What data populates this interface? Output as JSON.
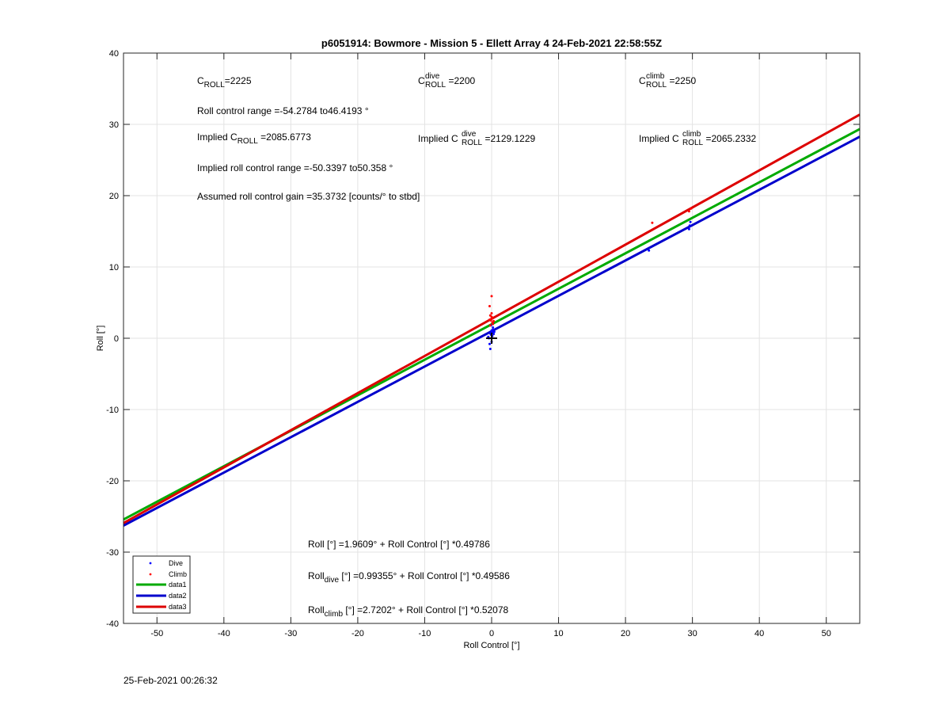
{
  "chart_data": {
    "type": "scatter",
    "title": "p6051914: Bowmore - Mission 5 - Ellett Array 4 24-Feb-2021 22:58:55Z",
    "xlabel": "Roll Control [°]",
    "ylabel": "Roll [°]",
    "xlim": [
      -55,
      55
    ],
    "ylim": [
      -40,
      40
    ],
    "xticks": [
      -50,
      -40,
      -30,
      -20,
      -10,
      0,
      10,
      20,
      30,
      40,
      50
    ],
    "yticks": [
      -40,
      -30,
      -20,
      -10,
      0,
      10,
      20,
      30,
      40
    ],
    "grid": true,
    "legend_position": "bottom-left",
    "series": [
      {
        "name": "Dive",
        "kind": "points",
        "color": "#0000ff",
        "x": [
          -0.5,
          -0.3,
          -0.2,
          -0.1,
          0.0,
          0.1,
          0.2,
          0.3,
          -0.4,
          0.0,
          0.2,
          0.4,
          -0.1,
          0.1,
          -0.2,
          0.0,
          23.5,
          29.5,
          29.6,
          29.7
        ],
        "y": [
          0.2,
          -0.8,
          -1.5,
          0.5,
          1.0,
          0.8,
          1.2,
          0.6,
          0.0,
          -0.5,
          1.5,
          0.9,
          1.8,
          0.3,
          0.7,
          1.1,
          12.3,
          15.3,
          15.8,
          16.3
        ]
      },
      {
        "name": "Climb",
        "kind": "points",
        "color": "#ff0000",
        "x": [
          -0.3,
          0.0,
          -0.2,
          0.1,
          -0.1,
          0.2,
          0.0,
          -0.3,
          0.1,
          0.0,
          -0.2,
          0.3,
          24.0,
          29.5,
          29.8
        ],
        "y": [
          4.5,
          5.9,
          3.2,
          2.8,
          2.5,
          2.0,
          3.0,
          2.6,
          2.2,
          3.5,
          1.8,
          2.4,
          16.2,
          17.8,
          18.2
        ]
      },
      {
        "name": "data1",
        "kind": "line",
        "color": "#00aa00",
        "intercept": 1.9609,
        "slope": 0.49786
      },
      {
        "name": "data2",
        "kind": "line",
        "color": "#0000cc",
        "intercept": 0.99355,
        "slope": 0.49586
      },
      {
        "name": "data3",
        "kind": "line",
        "color": "#dd0000",
        "intercept": 2.7202,
        "slope": 0.52078
      }
    ],
    "marker": {
      "x": 0,
      "y": 0,
      "symbol": "+"
    },
    "annotations": {
      "c_roll": {
        "base": "C",
        "sub": "ROLL",
        "value": "=2225"
      },
      "c_roll_dive": {
        "base": "C",
        "sup": "dive",
        "sub": "ROLL",
        "value": " =2200"
      },
      "c_roll_climb": {
        "base": "C",
        "sup": "climb",
        "sub": "ROLL",
        "value": " =2250"
      },
      "roll_control_range": "Roll control range =-54.2784 to46.4193 °",
      "implied_c_roll": {
        "pre": "Implied C",
        "sub": "ROLL",
        "value": " =2085.6773"
      },
      "implied_c_roll_dive": {
        "pre": "Implied C",
        "sup": "dive",
        "sub": "ROLL",
        "value": " =2129.1229"
      },
      "implied_c_roll_climb": {
        "pre": "Implied C",
        "sup": "climb",
        "sub": "ROLL",
        "value": " =2065.2332"
      },
      "implied_roll_range": "Implied roll control range =-50.3397 to50.358 °",
      "assumed_gain": "Assumed roll control gain =35.3732 [counts/° to stbd]",
      "fit_all": "Roll [°] =1.9609° + Roll Control [°] *0.49786",
      "fit_dive": {
        "pre": "Roll",
        "sub": "dive",
        "post": " [°] =0.99355° + Roll Control [°] *0.49586"
      },
      "fit_climb": {
        "pre": "Roll",
        "sub": "climb",
        "post": " [°] =2.7202° + Roll Control [°] *0.52078"
      }
    }
  },
  "footer_timestamp": "25-Feb-2021 00:26:32"
}
